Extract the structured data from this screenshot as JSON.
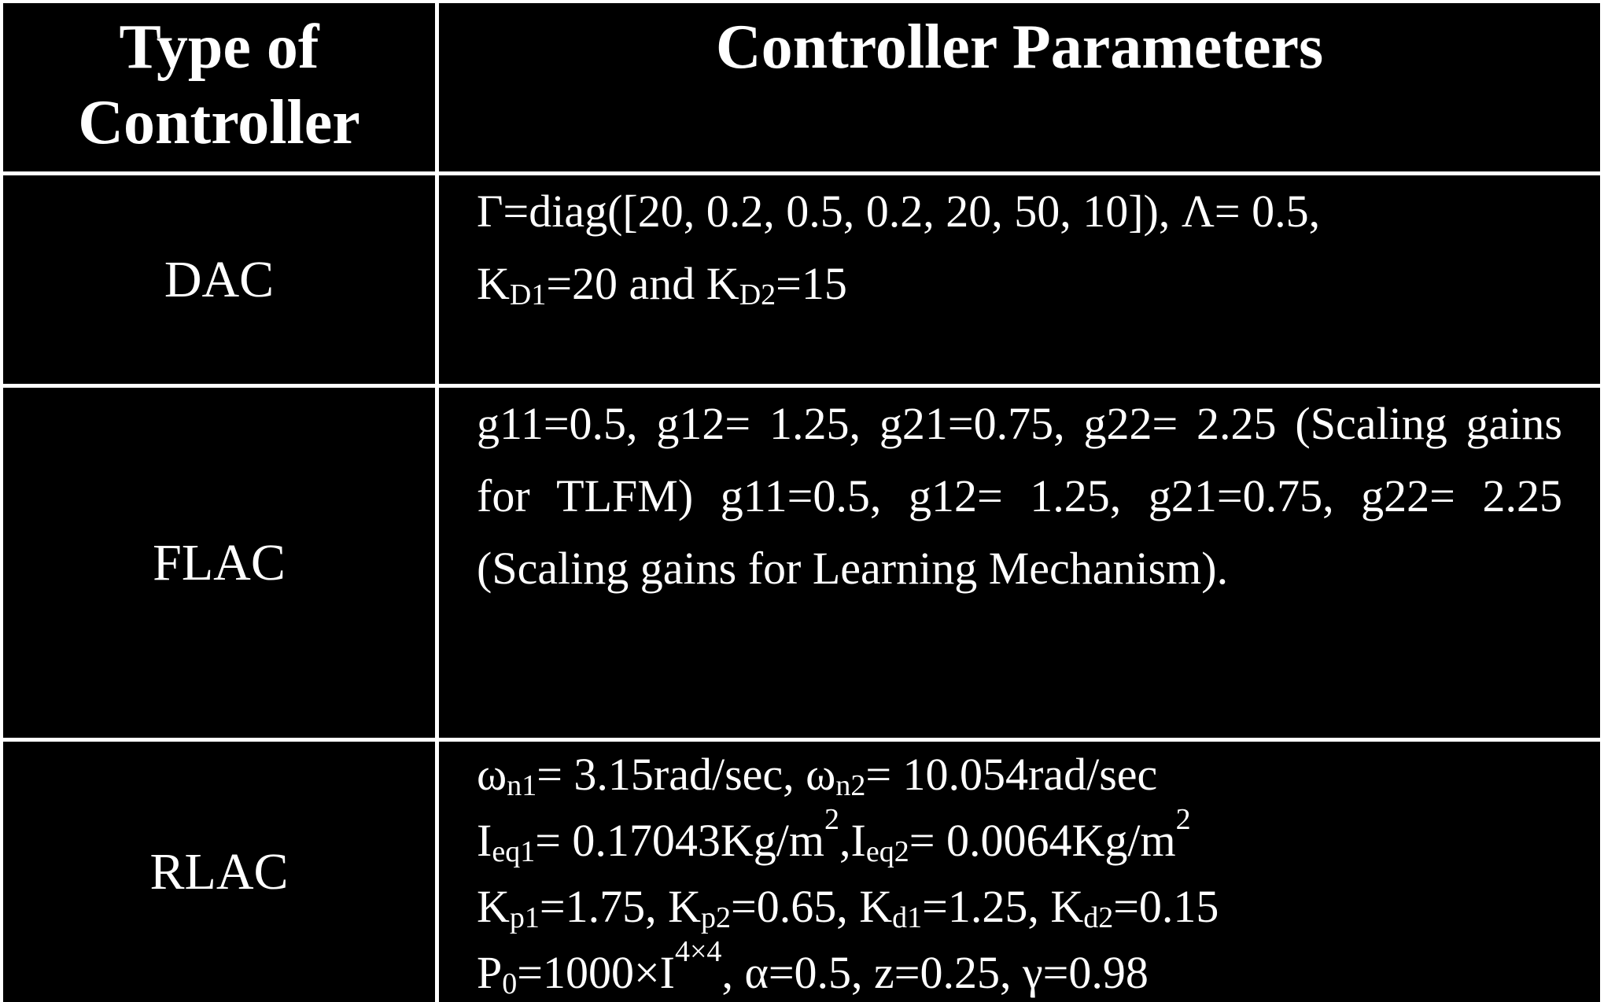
{
  "table": {
    "headers": {
      "type_line1": "Type of",
      "type_line2": "Controller",
      "params": "Controller Parameters"
    },
    "rows": [
      {
        "type": "DAC",
        "gamma": "Γ=diag([20, 0.2, 0.5, 0.2, 20, 50, 10]), Λ= 0.5,",
        "kd_prefix": "K",
        "kd1_sub": "D1",
        "kd1_val": "=20 and K",
        "kd2_sub": "D2",
        "kd2_val": "=15"
      },
      {
        "type": "FLAC",
        "text": "g11=0.5, g12= 1.25, g21=0.75, g22= 2.25 (Scaling gains for TLFM) g11=0.5, g12= 1.25, g21=0.75, g22= 2.25 (Scaling gains for Learning Mechanism)."
      },
      {
        "type": "RLAC",
        "omega": "ω",
        "omega1_sub": "n1",
        "omega1_val": "= 3.15rad/sec, ω",
        "omega2_sub": "n2",
        "omega2_val": "= 10.054rad/sec",
        "ieq_prefix": "I",
        "ieq1_sub": "eq1",
        "ieq1_val": "= 0.17043Kg/m",
        "ieq1_sup": "2",
        "ieq_sep": ",I",
        "ieq2_sub": "eq2",
        "ieq2_val": "= 0.0064Kg/m",
        "ieq2_sup": "2",
        "k": "K",
        "kp1_sub": "p1",
        "kp1_val": "=1.75, K",
        "kp2_sub": "p2",
        "kp2_val": "=0.65, K",
        "kd1_sub": "d1",
        "kd1_val": "=1.25, K",
        "kd2_sub": "d2",
        "kd2_val": "=0.15",
        "p": "P",
        "p_sub": "0",
        "p_val": "=1000×I",
        "p_sup": "4×4",
        "rest": ", α=0.5, z=0.25, γ=0.98"
      }
    ]
  }
}
